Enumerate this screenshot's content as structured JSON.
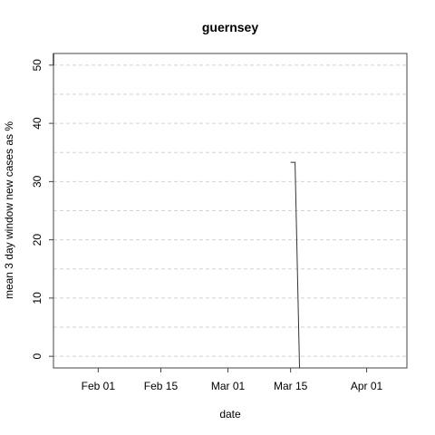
{
  "chart_data": {
    "type": "line",
    "title": "guernsey",
    "xlabel": "date",
    "ylabel": "mean  3  day window new cases as %",
    "x_axis": "date",
    "xlim": [
      "2020-01-22",
      "2020-04-10"
    ],
    "ylim": [
      -2,
      52
    ],
    "x_ticks": [
      {
        "date": "2020-02-01",
        "label": "Feb 01"
      },
      {
        "date": "2020-02-15",
        "label": "Feb 15"
      },
      {
        "date": "2020-03-01",
        "label": "Mar 01"
      },
      {
        "date": "2020-03-15",
        "label": "Mar 15"
      },
      {
        "date": "2020-04-01",
        "label": "Apr 01"
      }
    ],
    "y_ticks": [
      0,
      10,
      20,
      30,
      40,
      50
    ],
    "grid": "horizontal dashed",
    "line_color": "#333333",
    "series": [
      {
        "points": [
          {
            "x": "2020-03-15",
            "y": 33.3
          },
          {
            "x": "2020-03-16",
            "y": 33.3
          },
          {
            "x": "2020-03-17",
            "y": -2
          }
        ]
      }
    ],
    "left_edge_segment": [
      52,
      50
    ]
  }
}
